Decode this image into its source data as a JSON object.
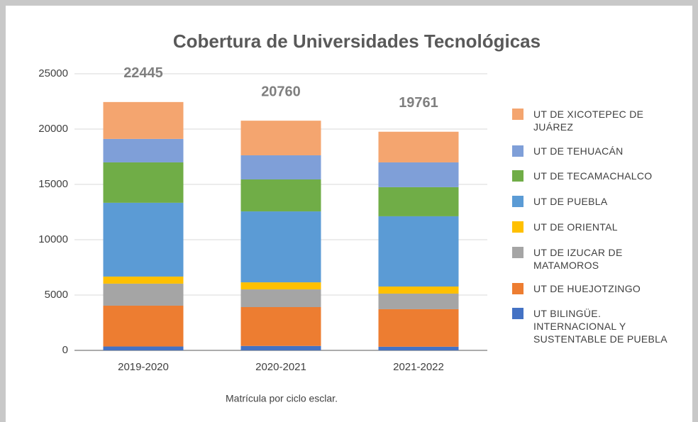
{
  "chart_data": {
    "type": "stacked_bar",
    "title": "Cobertura de Universidades Tecnológicas",
    "x_label": "Matrícula por ciclo esclar.",
    "categories": [
      "2019-2020",
      "2020-2021",
      "2021-2022"
    ],
    "totals": [
      22445,
      20760,
      19761
    ],
    "series": [
      {
        "name": "UT BILINGÜE. INTERNACIONAL Y SUSTENTABLE DE PUEBLA",
        "color": "#4472c4",
        "values": [
          350,
          400,
          330
        ]
      },
      {
        "name": "UT DE HUEJOTZINGO",
        "color": "#ed7d31",
        "values": [
          3690,
          3510,
          3390
        ]
      },
      {
        "name": "UT DE IZUCAR DE MATAMOROS",
        "color": "#a5a5a5",
        "values": [
          1990,
          1600,
          1410
        ]
      },
      {
        "name": "UT DE ORIENTAL",
        "color": "#ffc000",
        "values": [
          640,
          640,
          640
        ]
      },
      {
        "name": "UT DE PUEBLA",
        "color": "#5b9bd5",
        "values": [
          6670,
          6410,
          6350
        ]
      },
      {
        "name": "UT DE TECAMACHALCO",
        "color": "#70ad47",
        "values": [
          3650,
          2890,
          2630
        ]
      },
      {
        "name": "UT DE TEHUACÁN",
        "color": "#7f9fd8",
        "values": [
          2120,
          2180,
          2240
        ]
      },
      {
        "name": "UT DE XICOTEPEC DE JUÁREZ",
        "color": "#f4a56f",
        "values": [
          3335,
          3130,
          2771
        ]
      }
    ],
    "ylim": [
      0,
      25000
    ],
    "yticks": [
      0,
      5000,
      10000,
      15000,
      20000,
      25000
    ],
    "grid": true,
    "legend": "right"
  }
}
